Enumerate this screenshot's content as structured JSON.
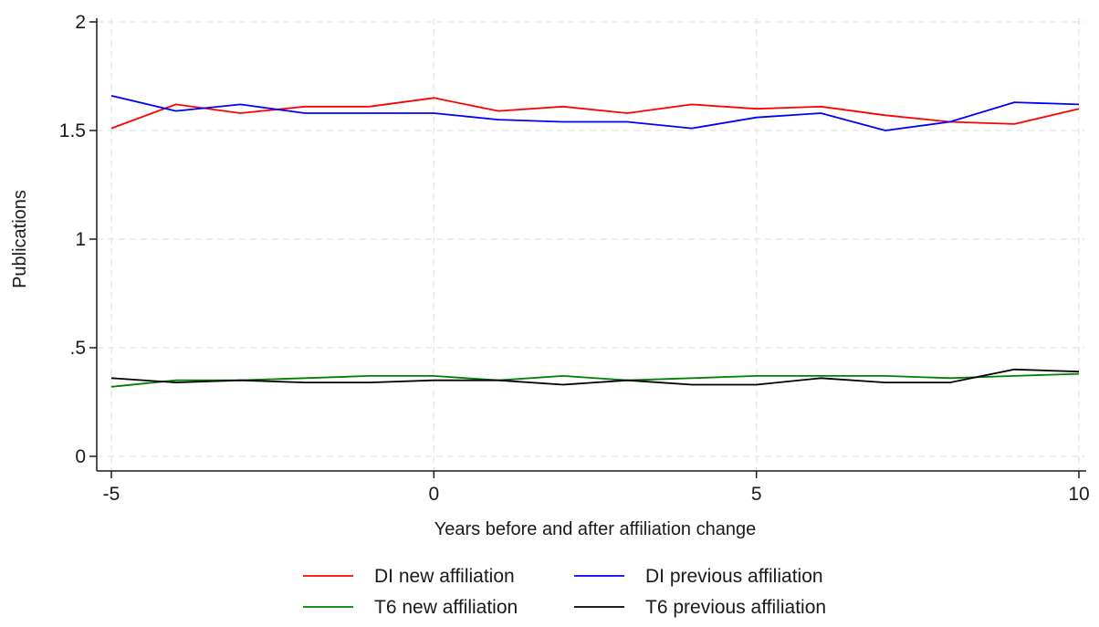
{
  "chart_data": {
    "type": "line",
    "title": "",
    "xlabel": "Years before and after affiliation change",
    "ylabel": "Publications",
    "xlim": [
      -5,
      10
    ],
    "ylim": [
      0,
      2
    ],
    "xticks": [
      -5,
      0,
      5,
      10
    ],
    "xtick_labels": [
      "-5",
      "0",
      "5",
      "10"
    ],
    "yticks": [
      0,
      0.5,
      1,
      1.5,
      2
    ],
    "ytick_labels": [
      "0",
      ".5",
      "1",
      "1.5",
      "2"
    ],
    "grid": true,
    "legend_position": "bottom",
    "x": [
      -5,
      -4,
      -3,
      -2,
      -1,
      0,
      1,
      2,
      3,
      4,
      5,
      6,
      7,
      8,
      9,
      10
    ],
    "series": [
      {
        "name": "DI new affiliation",
        "color": "#ff0000",
        "values": [
          1.51,
          1.62,
          1.58,
          1.61,
          1.61,
          1.65,
          1.59,
          1.61,
          1.58,
          1.62,
          1.6,
          1.61,
          1.57,
          1.54,
          1.53,
          1.6
        ]
      },
      {
        "name": "DI previous affiliation",
        "color": "#0000ff",
        "values": [
          1.66,
          1.59,
          1.62,
          1.58,
          1.58,
          1.58,
          1.55,
          1.54,
          1.54,
          1.51,
          1.56,
          1.58,
          1.5,
          1.54,
          1.63,
          1.62
        ]
      },
      {
        "name": "T6 new affiliation",
        "color": "#008000",
        "values": [
          0.32,
          0.35,
          0.35,
          0.36,
          0.37,
          0.37,
          0.35,
          0.37,
          0.35,
          0.36,
          0.37,
          0.37,
          0.37,
          0.36,
          0.37,
          0.38
        ]
      },
      {
        "name": "T6 previous affiliation",
        "color": "#000000",
        "values": [
          0.36,
          0.34,
          0.35,
          0.34,
          0.34,
          0.35,
          0.35,
          0.33,
          0.35,
          0.33,
          0.33,
          0.36,
          0.34,
          0.34,
          0.4,
          0.39
        ]
      }
    ]
  }
}
